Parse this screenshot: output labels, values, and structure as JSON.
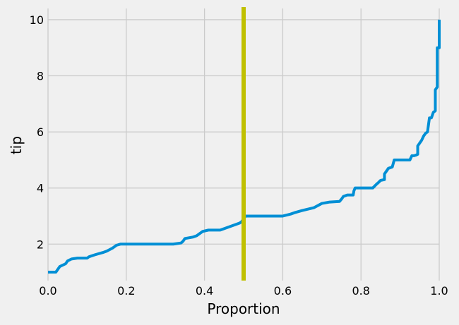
{
  "chart_data": {
    "type": "line",
    "title": "",
    "xlabel": "Proportion",
    "ylabel": "tip",
    "xlim": [
      0.0,
      1.0
    ],
    "ylim": [
      0.7,
      10.4
    ],
    "xticks": [
      "0.0",
      "0.2",
      "0.4",
      "0.6",
      "0.8",
      "1.0"
    ],
    "yticks": [
      "2",
      "4",
      "6",
      "8",
      "10"
    ],
    "grid": true,
    "series": [
      {
        "color": "#008fd5",
        "x": [
          0.0,
          0.02,
          0.03,
          0.045,
          0.05,
          0.06,
          0.075,
          0.1,
          0.105,
          0.12,
          0.14,
          0.15,
          0.165,
          0.175,
          0.185,
          0.32,
          0.34,
          0.345,
          0.35,
          0.37,
          0.38,
          0.39,
          0.395,
          0.41,
          0.44,
          0.45,
          0.46,
          0.48,
          0.49,
          0.495,
          0.5,
          0.505,
          0.6,
          0.62,
          0.63,
          0.65,
          0.68,
          0.7,
          0.72,
          0.745,
          0.75,
          0.755,
          0.765,
          0.78,
          0.782,
          0.785,
          0.83,
          0.84,
          0.845,
          0.85,
          0.86,
          0.86,
          0.865,
          0.87,
          0.88,
          0.885,
          0.89,
          0.885,
          0.925,
          0.93,
          0.935,
          0.94,
          0.945,
          0.945,
          0.95,
          0.955,
          0.96,
          0.965,
          0.97,
          0.975,
          0.975,
          0.98,
          0.985,
          0.985,
          0.99,
          0.99,
          0.995,
          0.995,
          0.997,
          0.997,
          1.0,
          1.0
        ],
        "y": [
          1.0,
          1.0,
          1.2,
          1.3,
          1.4,
          1.47,
          1.5,
          1.5,
          1.55,
          1.62,
          1.7,
          1.75,
          1.86,
          1.96,
          2.0,
          2.0,
          2.04,
          2.1,
          2.2,
          2.25,
          2.3,
          2.4,
          2.45,
          2.5,
          2.5,
          2.55,
          2.6,
          2.7,
          2.75,
          2.8,
          2.9,
          3.0,
          3.0,
          3.07,
          3.12,
          3.2,
          3.3,
          3.45,
          3.5,
          3.52,
          3.6,
          3.7,
          3.75,
          3.75,
          3.9,
          4.0,
          4.0,
          4.14,
          4.2,
          4.27,
          4.3,
          4.5,
          4.6,
          4.7,
          4.75,
          5.0,
          5.0,
          5.0,
          5.0,
          5.15,
          5.15,
          5.17,
          5.2,
          5.5,
          5.6,
          5.7,
          5.85,
          5.95,
          6.0,
          6.5,
          6.5,
          6.5,
          6.7,
          6.7,
          6.75,
          7.5,
          7.6,
          9.0,
          9.0,
          9.0,
          9.0,
          10.0
        ]
      }
    ],
    "vline": {
      "x": 0.5,
      "color": "#c0c000"
    }
  }
}
